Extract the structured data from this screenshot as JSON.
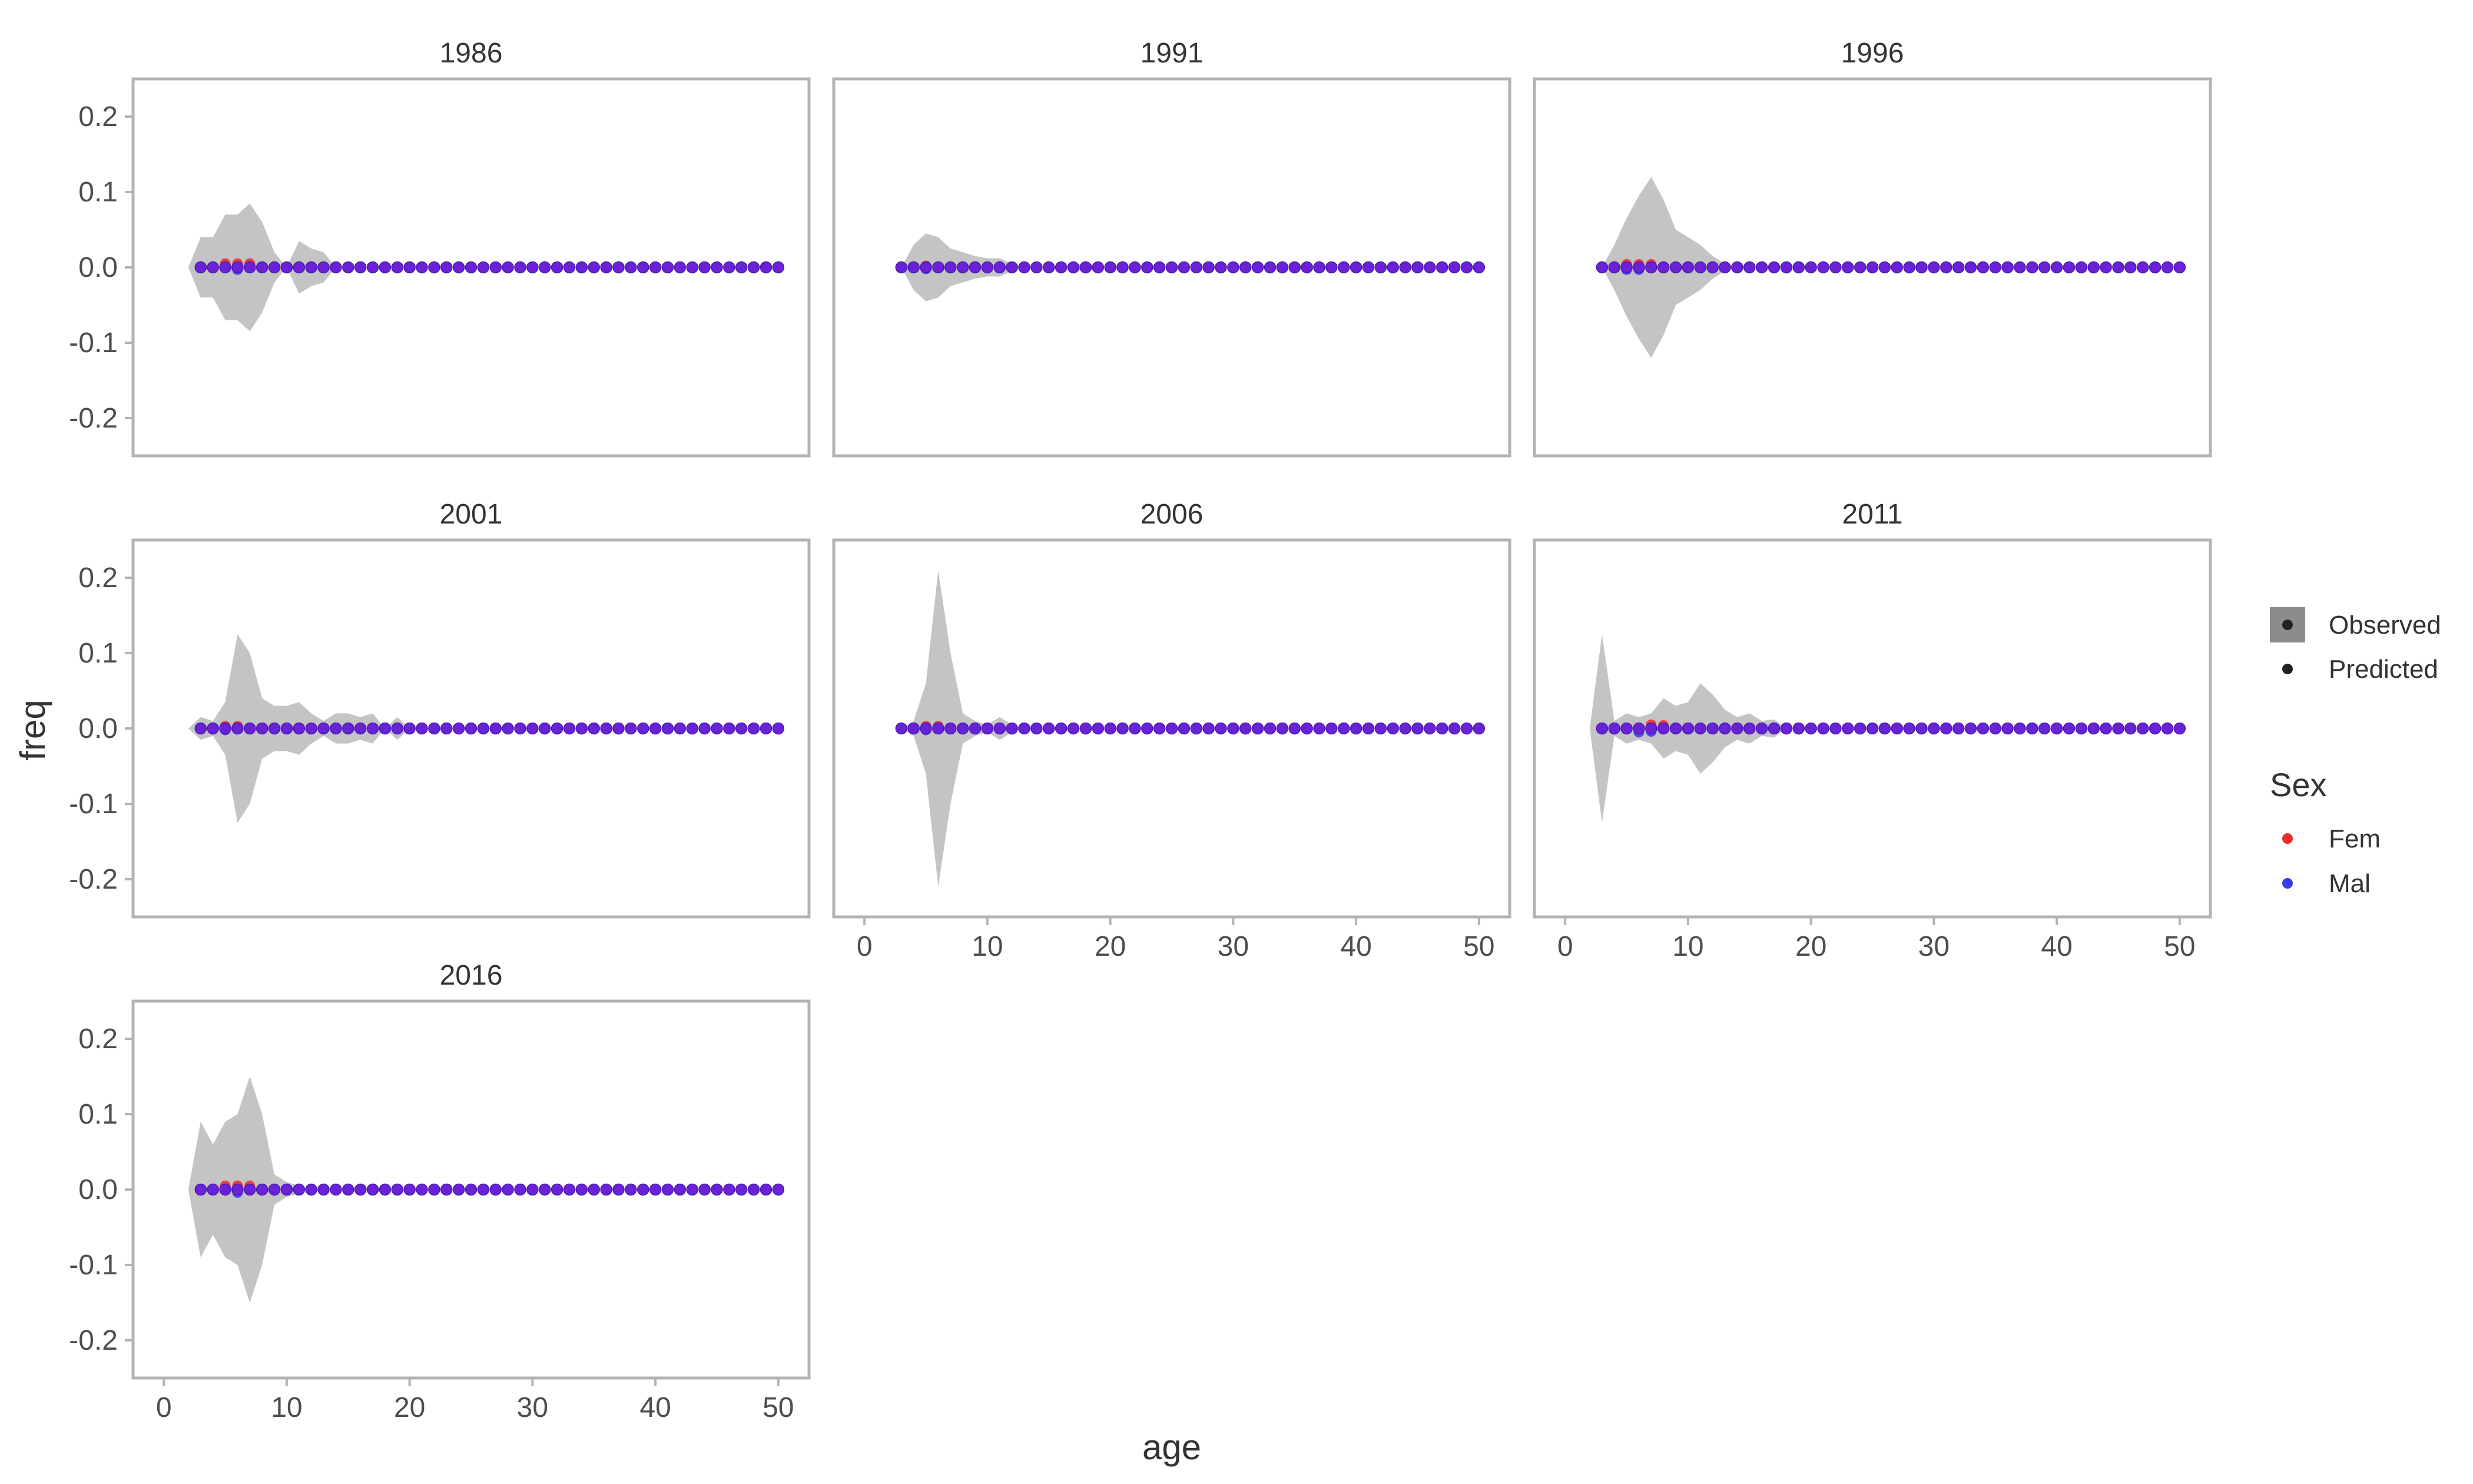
{
  "chart_data": {
    "type": "area",
    "xlabel": "age",
    "ylabel": "freq",
    "xlim": [
      -2.5,
      52.5
    ],
    "ylim": [
      -0.25,
      0.25
    ],
    "x_ticks": [
      0,
      10,
      20,
      30,
      40,
      50
    ],
    "x_tick_labels": [
      "0",
      "10",
      "20",
      "30",
      "40",
      "50"
    ],
    "y_ticks": [
      -0.2,
      -0.1,
      0.0,
      0.1,
      0.2
    ],
    "y_tick_labels": [
      "-0.2",
      "-0.1",
      "0.0",
      "0.1",
      "0.2"
    ],
    "grid": false,
    "legend": {
      "position": "right",
      "items": [
        {
          "label": "Observed",
          "kind": "band"
        },
        {
          "label": "Predicted",
          "kind": "point"
        }
      ],
      "sex_title": "Sex",
      "sex_items": [
        {
          "label": "Fem",
          "color": "#ee2a2a"
        },
        {
          "label": "Mal",
          "color": "#3a3aee"
        }
      ]
    },
    "colors": {
      "band": "#c4c4c4",
      "fem": "#ee2a2a",
      "mal": "#3a3aee",
      "overlap": "#6a22d6"
    },
    "predicted_age_range": [
      3,
      50
    ],
    "predicted_value": 0.0,
    "panels": [
      {
        "title": "1986",
        "observed_band": [
          [
            2,
            0.0
          ],
          [
            3,
            0.04
          ],
          [
            4,
            0.04
          ],
          [
            5,
            0.07
          ],
          [
            6,
            0.07
          ],
          [
            7,
            0.085
          ],
          [
            8,
            0.06
          ],
          [
            9,
            0.02
          ],
          [
            10,
            0.0
          ],
          [
            11,
            0.035
          ],
          [
            12,
            0.025
          ],
          [
            13,
            0.02
          ],
          [
            14,
            0.0
          ]
        ],
        "fem_offsets": [
          [
            5,
            0.005
          ],
          [
            6,
            0.005
          ],
          [
            7,
            0.005
          ]
        ],
        "mal_offsets": [
          [
            6,
            -0.003
          ]
        ]
      },
      {
        "title": "1991",
        "observed_band": [
          [
            3,
            0.0
          ],
          [
            4,
            0.03
          ],
          [
            5,
            0.045
          ],
          [
            6,
            0.04
          ],
          [
            7,
            0.025
          ],
          [
            8,
            0.02
          ],
          [
            9,
            0.015
          ],
          [
            10,
            0.012
          ],
          [
            11,
            0.012
          ],
          [
            12,
            0.005
          ],
          [
            13,
            0.0
          ],
          [
            17,
            0.0
          ],
          [
            18,
            0.008
          ],
          [
            19,
            0.0
          ],
          [
            35,
            0.0
          ],
          [
            36,
            0.006
          ],
          [
            37,
            0.0
          ]
        ],
        "fem_offsets": [
          [
            5,
            0.002
          ]
        ],
        "mal_offsets": [
          [
            5,
            -0.002
          ]
        ]
      },
      {
        "title": "1996",
        "observed_band": [
          [
            3,
            0.0
          ],
          [
            4,
            0.03
          ],
          [
            5,
            0.065
          ],
          [
            6,
            0.095
          ],
          [
            7,
            0.12
          ],
          [
            8,
            0.09
          ],
          [
            9,
            0.05
          ],
          [
            10,
            0.04
          ],
          [
            11,
            0.03
          ],
          [
            12,
            0.015
          ],
          [
            13,
            0.005
          ],
          [
            14,
            0.0
          ]
        ],
        "fem_offsets": [
          [
            5,
            0.004
          ],
          [
            6,
            0.004
          ],
          [
            7,
            0.004
          ]
        ],
        "mal_offsets": [
          [
            5,
            -0.003
          ],
          [
            6,
            -0.003
          ]
        ]
      },
      {
        "title": "2001",
        "observed_band": [
          [
            2,
            0.0
          ],
          [
            3,
            0.015
          ],
          [
            4,
            0.01
          ],
          [
            5,
            0.035
          ],
          [
            6,
            0.125
          ],
          [
            7,
            0.1
          ],
          [
            8,
            0.04
          ],
          [
            9,
            0.03
          ],
          [
            10,
            0.03
          ],
          [
            11,
            0.035
          ],
          [
            12,
            0.02
          ],
          [
            13,
            0.01
          ],
          [
            14,
            0.02
          ],
          [
            15,
            0.02
          ],
          [
            16,
            0.015
          ],
          [
            17,
            0.02
          ],
          [
            18,
            0.0
          ],
          [
            19,
            0.015
          ],
          [
            20,
            0.0
          ]
        ],
        "fem_offsets": [
          [
            5,
            0.003
          ],
          [
            6,
            0.003
          ]
        ],
        "mal_offsets": [
          [
            5,
            -0.002
          ]
        ]
      },
      {
        "title": "2006",
        "observed_band": [
          [
            3,
            0.0
          ],
          [
            4,
            0.01
          ],
          [
            5,
            0.06
          ],
          [
            6,
            0.21
          ],
          [
            7,
            0.1
          ],
          [
            8,
            0.02
          ],
          [
            9,
            0.01
          ],
          [
            10,
            0.005
          ],
          [
            11,
            0.015
          ],
          [
            12,
            0.005
          ],
          [
            13,
            0.0
          ]
        ],
        "fem_offsets": [
          [
            5,
            0.003
          ],
          [
            6,
            0.003
          ]
        ],
        "mal_offsets": [
          [
            5,
            -0.002
          ]
        ]
      },
      {
        "title": "2011",
        "observed_band": [
          [
            2,
            0.0
          ],
          [
            3,
            0.125
          ],
          [
            4,
            0.01
          ],
          [
            5,
            0.02
          ],
          [
            6,
            0.015
          ],
          [
            7,
            0.02
          ],
          [
            8,
            0.04
          ],
          [
            9,
            0.03
          ],
          [
            10,
            0.035
          ],
          [
            11,
            0.06
          ],
          [
            12,
            0.045
          ],
          [
            13,
            0.025
          ],
          [
            14,
            0.015
          ],
          [
            15,
            0.02
          ],
          [
            16,
            0.01
          ],
          [
            17,
            0.012
          ],
          [
            18,
            0.0
          ],
          [
            27,
            0.0
          ],
          [
            28,
            0.005
          ],
          [
            29,
            0.0
          ]
        ],
        "fem_offsets": [
          [
            7,
            0.005
          ],
          [
            8,
            0.004
          ]
        ],
        "mal_offsets": [
          [
            6,
            -0.005
          ],
          [
            7,
            -0.004
          ]
        ]
      },
      {
        "title": "2016",
        "observed_band": [
          [
            2,
            0.0
          ],
          [
            3,
            0.09
          ],
          [
            4,
            0.06
          ],
          [
            5,
            0.09
          ],
          [
            6,
            0.1
          ],
          [
            7,
            0.15
          ],
          [
            8,
            0.1
          ],
          [
            9,
            0.02
          ],
          [
            10,
            0.01
          ],
          [
            11,
            0.005
          ],
          [
            12,
            0.0
          ],
          [
            16,
            0.0
          ],
          [
            17,
            0.005
          ],
          [
            18,
            0.0
          ]
        ],
        "fem_offsets": [
          [
            5,
            0.005
          ],
          [
            6,
            0.005
          ],
          [
            7,
            0.005
          ]
        ],
        "mal_offsets": [
          [
            6,
            -0.004
          ]
        ]
      }
    ]
  }
}
